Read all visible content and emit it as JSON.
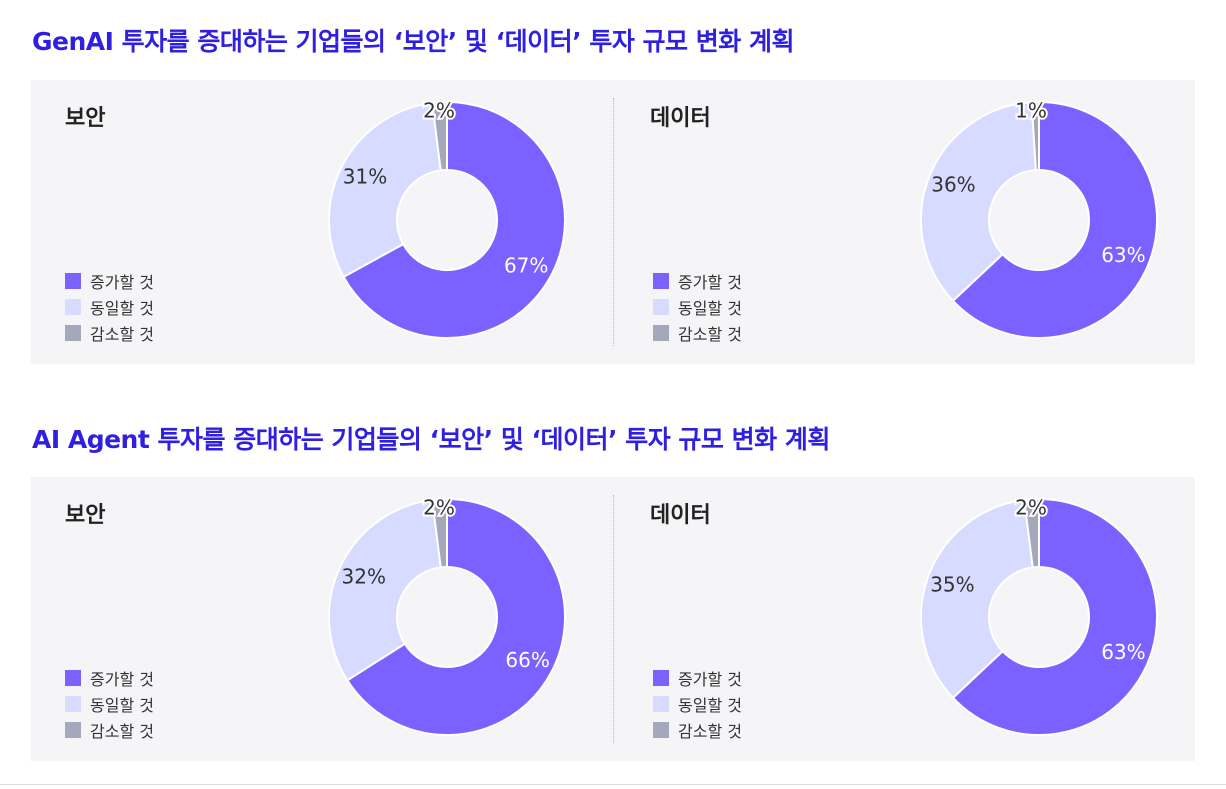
{
  "sections": [
    {
      "title": "GenAI 투자를 증대하는 기업들의 ‘보안’ 및 ‘데이터’ 투자 규모 변화 계획",
      "charts": [
        {
          "title": "보안",
          "values": [
            67,
            31,
            2
          ],
          "labels": [
            "67%",
            "31%",
            "2%"
          ]
        },
        {
          "title": "데이터",
          "values": [
            63,
            36,
            1
          ],
          "labels": [
            "63%",
            "36%",
            "1%"
          ]
        }
      ]
    },
    {
      "title": "AI Agent 투자를 증대하는 기업들의 ‘보안’ 및 ‘데이터’ 투자 규모 변화 계획",
      "charts": [
        {
          "title": "보안",
          "values": [
            66,
            32,
            2
          ],
          "labels": [
            "66%",
            "32%",
            "2%"
          ]
        },
        {
          "title": "데이터",
          "values": [
            63,
            35,
            2
          ],
          "labels": [
            "63%",
            "35%",
            "2%"
          ]
        }
      ]
    }
  ],
  "legend": [
    "증가할 것",
    "동일할 것",
    "감소할 것"
  ],
  "colors": {
    "increase": "#7b61ff",
    "same": "#d7dbff",
    "decrease": "#a4a8bb",
    "title": "#2f1fe0"
  },
  "chart_data": [
    {
      "type": "pie",
      "title": "보안",
      "categories": [
        "증가할 것",
        "동일할 것",
        "감소할 것"
      ],
      "values": [
        67,
        31,
        2
      ]
    },
    {
      "type": "pie",
      "title": "데이터",
      "categories": [
        "증가할 것",
        "동일할 것",
        "감소할 것"
      ],
      "values": [
        63,
        36,
        1
      ]
    },
    {
      "type": "pie",
      "title": "보안",
      "categories": [
        "증가할 것",
        "동일할 것",
        "감소할 것"
      ],
      "values": [
        66,
        32,
        2
      ]
    },
    {
      "type": "pie",
      "title": "데이터",
      "categories": [
        "증가할 것",
        "동일할 것",
        "감소할 것"
      ],
      "values": [
        63,
        35,
        2
      ]
    }
  ]
}
